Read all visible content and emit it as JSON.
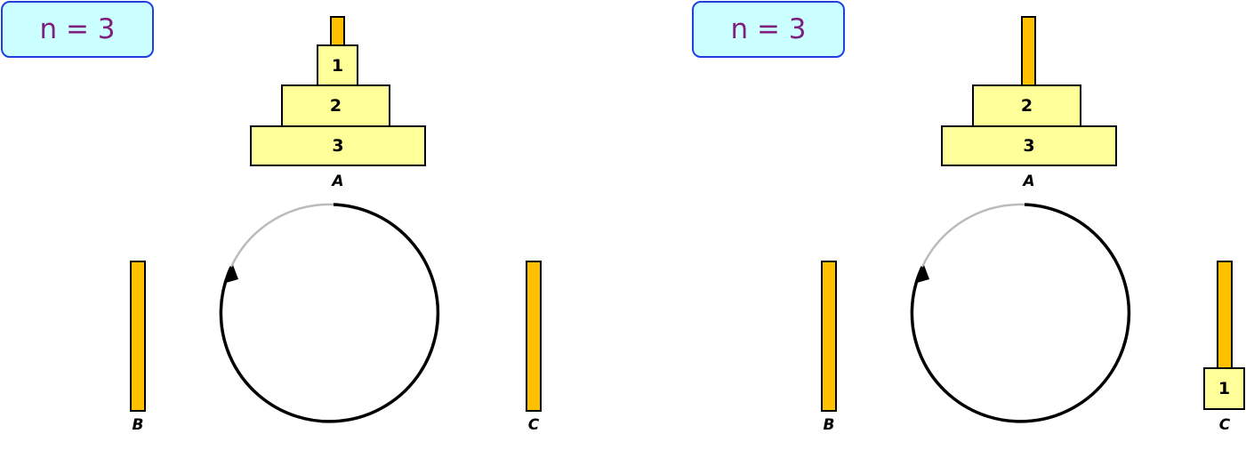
{
  "panels": [
    {
      "n_label": "n = 3",
      "pegs": {
        "a": "A",
        "b": "B",
        "c": "C"
      },
      "disks_on_a": [
        "1",
        "2",
        "3"
      ],
      "disks_on_c": []
    },
    {
      "n_label": "n = 3",
      "pegs": {
        "a": "A",
        "b": "B",
        "c": "C"
      },
      "disks_on_a": [
        "2",
        "3"
      ],
      "disks_on_c": [
        "1"
      ]
    }
  ],
  "colors": {
    "peg": "#ffc000",
    "disk": "#ffff99",
    "badge_fill": "#ccffff",
    "badge_border": "#1f3fe0",
    "badge_text": "#7f1f7f",
    "cycle_arc": "#000000",
    "cycle_arc_faded": "#bbbbbb"
  }
}
